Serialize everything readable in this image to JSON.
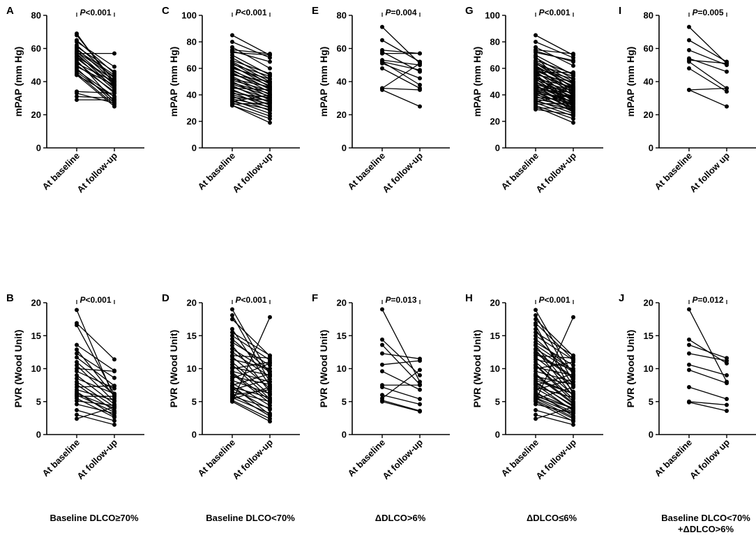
{
  "chart_data": [
    {
      "id": "A",
      "type": "line",
      "panel_letter": "A",
      "ylabel": "mPAP (mm Hg)",
      "ylim": [
        0,
        80
      ],
      "yticks": [
        0,
        20,
        40,
        60,
        80
      ],
      "categories": [
        "At baseline",
        "At follow-up"
      ],
      "p_prefix": "P",
      "p_suffix": "<0.001",
      "pairs": [
        [
          69,
          38
        ],
        [
          68,
          40
        ],
        [
          65,
          45
        ],
        [
          64,
          49
        ],
        [
          62,
          42
        ],
        [
          61,
          46
        ],
        [
          60,
          40
        ],
        [
          59,
          44
        ],
        [
          58,
          43
        ],
        [
          58,
          38
        ],
        [
          57,
          57
        ],
        [
          57,
          36
        ],
        [
          56,
          39
        ],
        [
          55,
          41
        ],
        [
          55,
          35
        ],
        [
          54,
          37
        ],
        [
          53,
          28
        ],
        [
          52,
          33
        ],
        [
          51,
          40
        ],
        [
          50,
          34
        ],
        [
          49,
          38
        ],
        [
          48,
          27
        ],
        [
          47,
          31
        ],
        [
          46,
          29
        ],
        [
          45,
          26
        ],
        [
          44,
          25
        ],
        [
          44,
          31
        ],
        [
          34,
          33
        ],
        [
          33,
          27
        ],
        [
          31,
          30
        ],
        [
          29,
          29
        ]
      ]
    },
    {
      "id": "B",
      "type": "line",
      "panel_letter": "B",
      "ylabel": "PVR (Wood Unit)",
      "ylim": [
        0,
        20
      ],
      "yticks": [
        0,
        5,
        10,
        15,
        20
      ],
      "categories": [
        "At baseline",
        "At follow-up"
      ],
      "p_prefix": "P",
      "p_suffix": "<0.001",
      "pairs": [
        [
          18.9,
          5.5
        ],
        [
          16.9,
          11.4
        ],
        [
          16.6,
          6.1
        ],
        [
          13.6,
          9.7
        ],
        [
          12.9,
          5.8
        ],
        [
          12.3,
          8.6
        ],
        [
          11.7,
          7.4
        ],
        [
          11.0,
          6.0
        ],
        [
          10.5,
          5.0
        ],
        [
          10.0,
          9.6
        ],
        [
          9.6,
          7.0
        ],
        [
          9.0,
          4.6
        ],
        [
          8.5,
          6.2
        ],
        [
          8.0,
          4.2
        ],
        [
          7.6,
          3.6
        ],
        [
          7.2,
          7.4
        ],
        [
          6.8,
          5.2
        ],
        [
          6.5,
          2.8
        ],
        [
          6.2,
          4.0
        ],
        [
          6.0,
          3.4
        ],
        [
          5.8,
          5.8
        ],
        [
          5.5,
          2.6
        ],
        [
          5.1,
          4.4
        ],
        [
          4.6,
          3.2
        ],
        [
          3.7,
          2.1
        ],
        [
          3.0,
          1.5
        ],
        [
          2.4,
          4.2
        ]
      ]
    },
    {
      "id": "C",
      "type": "line",
      "panel_letter": "C",
      "ylabel": "mPAP (mm Hg)",
      "ylim": [
        0,
        100
      ],
      "yticks": [
        0,
        20,
        40,
        60,
        80,
        100
      ],
      "categories": [
        "At baseline",
        "At follow-up"
      ],
      "p_prefix": "P",
      "p_suffix": "<0.001",
      "pairs": [
        [
          85,
          70
        ],
        [
          80,
          68
        ],
        [
          76,
          60
        ],
        [
          74,
          71
        ],
        [
          73,
          65
        ],
        [
          72,
          70
        ],
        [
          70,
          55
        ],
        [
          68,
          52
        ],
        [
          66,
          56
        ],
        [
          65,
          50
        ],
        [
          64,
          48
        ],
        [
          63,
          54
        ],
        [
          62,
          46
        ],
        [
          61,
          49
        ],
        [
          60,
          52
        ],
        [
          59,
          44
        ],
        [
          58,
          47
        ],
        [
          57,
          42
        ],
        [
          56,
          45
        ],
        [
          55,
          50
        ],
        [
          54,
          40
        ],
        [
          53,
          38
        ],
        [
          52,
          46
        ],
        [
          51,
          43
        ],
        [
          50,
          36
        ],
        [
          49,
          41
        ],
        [
          48,
          39
        ],
        [
          47,
          34
        ],
        [
          46,
          37
        ],
        [
          45,
          44
        ],
        [
          44,
          32
        ],
        [
          43,
          35
        ],
        [
          42,
          30
        ],
        [
          41,
          38
        ],
        [
          40,
          33
        ],
        [
          39,
          28
        ],
        [
          38,
          36
        ],
        [
          37,
          31
        ],
        [
          36,
          26
        ],
        [
          35,
          40
        ],
        [
          35,
          29
        ],
        [
          34,
          24
        ],
        [
          33,
          34
        ],
        [
          32,
          22
        ],
        [
          32,
          19
        ]
      ]
    },
    {
      "id": "D",
      "type": "line",
      "panel_letter": "D",
      "ylabel": "PVR (Wood Unit)",
      "ylim": [
        0,
        20
      ],
      "yticks": [
        0,
        5,
        10,
        15,
        20
      ],
      "categories": [
        "At baseline",
        "At follow-up"
      ],
      "p_prefix": "P",
      "p_suffix": "<0.001",
      "pairs": [
        [
          19.0,
          9.0
        ],
        [
          18.1,
          8.0
        ],
        [
          17.5,
          11.9
        ],
        [
          16.0,
          7.4
        ],
        [
          15.5,
          12.0
        ],
        [
          15.0,
          11.3
        ],
        [
          14.5,
          9.6
        ],
        [
          14.0,
          10.5
        ],
        [
          13.5,
          6.5
        ],
        [
          13.0,
          9.5
        ],
        [
          12.5,
          8.8
        ],
        [
          12.0,
          11.6
        ],
        [
          11.8,
          7.0
        ],
        [
          11.4,
          10.0
        ],
        [
          11.0,
          6.0
        ],
        [
          10.6,
          5.4
        ],
        [
          10.2,
          9.0
        ],
        [
          10.0,
          11.0
        ],
        [
          9.6,
          8.0
        ],
        [
          9.2,
          4.8
        ],
        [
          8.8,
          7.6
        ],
        [
          8.5,
          10.8
        ],
        [
          8.2,
          6.2
        ],
        [
          7.8,
          4.4
        ],
        [
          7.5,
          9.2
        ],
        [
          7.2,
          5.6
        ],
        [
          7.0,
          3.8
        ],
        [
          6.8,
          8.4
        ],
        [
          6.5,
          5.0
        ],
        [
          6.2,
          2.8
        ],
        [
          6.0,
          6.8
        ],
        [
          5.8,
          4.0
        ],
        [
          5.6,
          3.2
        ],
        [
          5.4,
          7.2
        ],
        [
          5.2,
          2.4
        ],
        [
          5.0,
          17.8
        ],
        [
          5.0,
          2.0
        ],
        [
          7.4,
          3.0
        ],
        [
          9.4,
          5.2
        ]
      ]
    },
    {
      "id": "E",
      "type": "line",
      "panel_letter": "E",
      "ylabel": "mPAP (mm Hg)",
      "ylim": [
        0,
        80
      ],
      "yticks": [
        0,
        20,
        40,
        60,
        80
      ],
      "categories": [
        "At baseline",
        "At follow-up"
      ],
      "p_prefix": "P",
      "p_suffix": "=0.004",
      "pairs": [
        [
          73,
          51
        ],
        [
          65,
          52
        ],
        [
          59,
          57
        ],
        [
          58,
          46
        ],
        [
          57,
          57
        ],
        [
          53,
          50
        ],
        [
          52,
          38
        ],
        [
          52,
          47
        ],
        [
          51,
          42
        ],
        [
          48,
          36
        ],
        [
          36,
          35
        ],
        [
          36,
          51
        ],
        [
          35,
          25
        ]
      ]
    },
    {
      "id": "F",
      "type": "line",
      "panel_letter": "F",
      "ylabel": "PVR (Wood Unit)",
      "ylim": [
        0,
        20
      ],
      "yticks": [
        0,
        5,
        10,
        15,
        20
      ],
      "categories": [
        "At baseline",
        "At follow-up"
      ],
      "p_prefix": "P",
      "p_suffix": "=0.013",
      "pairs": [
        [
          19.0,
          8.0
        ],
        [
          14.4,
          9.0
        ],
        [
          13.6,
          7.6
        ],
        [
          12.3,
          11.5
        ],
        [
          10.6,
          11.2
        ],
        [
          9.6,
          6.8
        ],
        [
          7.5,
          7.5
        ],
        [
          7.2,
          5.4
        ],
        [
          6.0,
          4.6
        ],
        [
          5.2,
          3.6
        ],
        [
          5.0,
          3.5
        ],
        [
          5.5,
          9.8
        ]
      ]
    },
    {
      "id": "G",
      "type": "line",
      "panel_letter": "G",
      "ylabel": "mPAP (mm Hg)",
      "ylim": [
        0,
        100
      ],
      "yticks": [
        0,
        20,
        40,
        60,
        80,
        100
      ],
      "categories": [
        "At baseline",
        "At follow-up"
      ],
      "p_prefix": "P",
      "p_suffix": "<0.001",
      "pairs": [
        [
          85,
          70
        ],
        [
          80,
          68
        ],
        [
          76,
          62
        ],
        [
          74,
          71
        ],
        [
          73,
          65
        ],
        [
          72,
          66
        ],
        [
          70,
          55
        ],
        [
          69,
          40
        ],
        [
          68,
          52
        ],
        [
          66,
          56
        ],
        [
          65,
          50
        ],
        [
          64,
          48
        ],
        [
          63,
          54
        ],
        [
          62,
          46
        ],
        [
          61,
          49
        ],
        [
          60,
          52
        ],
        [
          59,
          44
        ],
        [
          58,
          47
        ],
        [
          57,
          57
        ],
        [
          57,
          42
        ],
        [
          56,
          45
        ],
        [
          55,
          50
        ],
        [
          54,
          40
        ],
        [
          53,
          38
        ],
        [
          52,
          46
        ],
        [
          51,
          43
        ],
        [
          50,
          36
        ],
        [
          49,
          41
        ],
        [
          48,
          39
        ],
        [
          47,
          34
        ],
        [
          46,
          37
        ],
        [
          45,
          44
        ],
        [
          44,
          32
        ],
        [
          43,
          35
        ],
        [
          42,
          30
        ],
        [
          41,
          38
        ],
        [
          40,
          33
        ],
        [
          39,
          28
        ],
        [
          38,
          36
        ],
        [
          37,
          31
        ],
        [
          36,
          26
        ],
        [
          35,
          40
        ],
        [
          35,
          29
        ],
        [
          34,
          24
        ],
        [
          33,
          34
        ],
        [
          32,
          22
        ],
        [
          31,
          19
        ],
        [
          30,
          30
        ],
        [
          29,
          25
        ],
        [
          56,
          29
        ],
        [
          54,
          35
        ],
        [
          52,
          33
        ],
        [
          50,
          31
        ],
        [
          48,
          27
        ],
        [
          46,
          38
        ],
        [
          44,
          42
        ],
        [
          58,
          36
        ],
        [
          60,
          43
        ],
        [
          62,
          39
        ],
        [
          64,
          45
        ],
        [
          47,
          30
        ],
        [
          45,
          33
        ],
        [
          43,
          29
        ],
        [
          41,
          27
        ]
      ]
    },
    {
      "id": "H",
      "type": "line",
      "panel_letter": "H",
      "ylabel": "PVR (Wood Unit)",
      "ylim": [
        0,
        20
      ],
      "yticks": [
        0,
        5,
        10,
        15,
        20
      ],
      "categories": [
        "At baseline",
        "At follow-up"
      ],
      "p_prefix": "P",
      "p_suffix": "<0.001",
      "pairs": [
        [
          18.9,
          9.0
        ],
        [
          18.1,
          8.0
        ],
        [
          17.5,
          11.9
        ],
        [
          16.9,
          11.4
        ],
        [
          16.6,
          6.1
        ],
        [
          16.0,
          7.4
        ],
        [
          15.5,
          12.0
        ],
        [
          15.0,
          11.3
        ],
        [
          14.5,
          9.6
        ],
        [
          14.0,
          10.5
        ],
        [
          13.6,
          9.7
        ],
        [
          13.5,
          6.5
        ],
        [
          13.0,
          9.5
        ],
        [
          12.9,
          5.8
        ],
        [
          12.5,
          8.8
        ],
        [
          12.3,
          8.6
        ],
        [
          12.0,
          11.6
        ],
        [
          11.7,
          7.4
        ],
        [
          11.4,
          10.0
        ],
        [
          11.0,
          6.0
        ],
        [
          10.6,
          5.4
        ],
        [
          10.5,
          5.0
        ],
        [
          10.2,
          9.0
        ],
        [
          10.0,
          11.0
        ],
        [
          9.6,
          8.0
        ],
        [
          9.2,
          4.8
        ],
        [
          9.0,
          4.6
        ],
        [
          8.8,
          7.6
        ],
        [
          8.5,
          6.2
        ],
        [
          8.2,
          6.2
        ],
        [
          8.0,
          4.2
        ],
        [
          7.8,
          4.4
        ],
        [
          7.6,
          3.6
        ],
        [
          7.5,
          9.2
        ],
        [
          7.2,
          5.6
        ],
        [
          7.0,
          3.8
        ],
        [
          6.8,
          8.4
        ],
        [
          6.5,
          2.8
        ],
        [
          6.2,
          4.0
        ],
        [
          6.0,
          3.4
        ],
        [
          5.8,
          4.0
        ],
        [
          5.6,
          3.2
        ],
        [
          5.5,
          2.6
        ],
        [
          5.4,
          7.2
        ],
        [
          5.2,
          2.4
        ],
        [
          5.1,
          17.8
        ],
        [
          5.0,
          2.0
        ],
        [
          4.6,
          3.2
        ],
        [
          3.7,
          2.1
        ],
        [
          3.0,
          1.5
        ],
        [
          2.4,
          4.2
        ]
      ]
    },
    {
      "id": "I",
      "type": "line",
      "panel_letter": "I",
      "ylabel": "mPAP (mm Hg)",
      "ylim": [
        0,
        80
      ],
      "yticks": [
        0,
        20,
        40,
        60,
        80
      ],
      "categories": [
        "At baseline",
        "At follow up"
      ],
      "p_prefix": "P",
      "p_suffix": "=0.005",
      "pairs": [
        [
          73,
          51
        ],
        [
          65,
          52
        ],
        [
          59,
          50
        ],
        [
          54,
          46
        ],
        [
          53,
          51
        ],
        [
          52,
          36
        ],
        [
          48,
          34
        ],
        [
          35,
          36
        ],
        [
          35,
          25
        ]
      ]
    },
    {
      "id": "J",
      "type": "line",
      "panel_letter": "J",
      "ylabel": "PVR (Wood Unit)",
      "ylim": [
        0,
        20
      ],
      "yticks": [
        0,
        5,
        10,
        15,
        20
      ],
      "categories": [
        "At baseline",
        "At follow up"
      ],
      "p_prefix": "P",
      "p_suffix": "=0.012",
      "pairs": [
        [
          19.0,
          8.0
        ],
        [
          14.4,
          10.8
        ],
        [
          13.6,
          11.6
        ],
        [
          12.3,
          11.2
        ],
        [
          10.6,
          9.0
        ],
        [
          9.8,
          7.8
        ],
        [
          7.2,
          5.4
        ],
        [
          5.0,
          4.5
        ],
        [
          4.9,
          3.6
        ]
      ]
    }
  ],
  "column_labels": [
    {
      "lines": [
        "Baseline DLCO≥70%"
      ]
    },
    {
      "lines": [
        "Baseline DLCO<70%"
      ]
    },
    {
      "lines": [
        "ΔDLCO>6%"
      ]
    },
    {
      "lines": [
        "ΔDLCO≤6%"
      ]
    },
    {
      "lines": [
        "Baseline DLCO<70%",
        "+ΔDLCO>6%"
      ]
    }
  ],
  "style": {
    "line_color": "#000000",
    "marker_color": "#000000"
  }
}
